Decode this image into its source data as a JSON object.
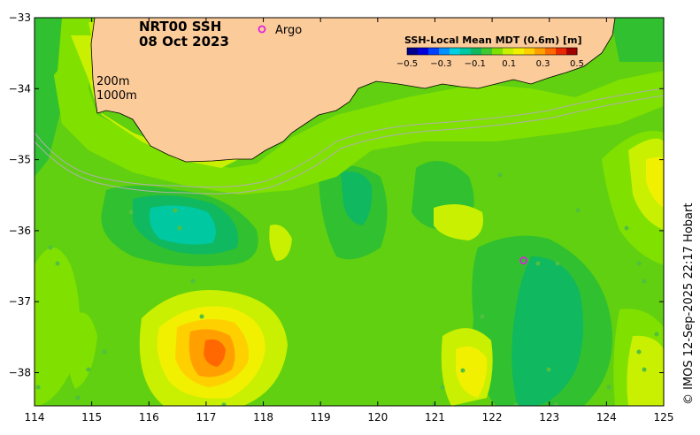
{
  "map": {
    "title": "NRT00 SSH",
    "date": "08 Oct 2023",
    "legend_label": "Argo",
    "legend_color": "#e020e0",
    "contour_labels": [
      "200m",
      "1000m"
    ],
    "colorbar": {
      "title": "SSH-Local Mean MDT (0.6m) [m]",
      "ticks": [
        "−0.5",
        "−0.3",
        "−0.1",
        "0.1",
        "0.3",
        "0.5"
      ],
      "colors": [
        "#00008c",
        "#0000d8",
        "#0040ff",
        "#0090ff",
        "#00d0e0",
        "#00c8a0",
        "#10b860",
        "#40c830",
        "#80e000",
        "#c8f000",
        "#f0f000",
        "#ffd000",
        "#ffa000",
        "#ff6800",
        "#e82800",
        "#a00000"
      ]
    },
    "credit": "© IMOS 12-Sep-2025 22:17 Hobart",
    "land_color": "#fccb9a",
    "x_ticks": [
      "114",
      "115",
      "116",
      "117",
      "118",
      "119",
      "120",
      "121",
      "122",
      "123",
      "124",
      "125"
    ],
    "y_ticks": [
      "−33",
      "−34",
      "−35",
      "−36",
      "−37",
      "−38"
    ],
    "argo_float": {
      "lon": 122.55,
      "lat": -36.42
    }
  }
}
